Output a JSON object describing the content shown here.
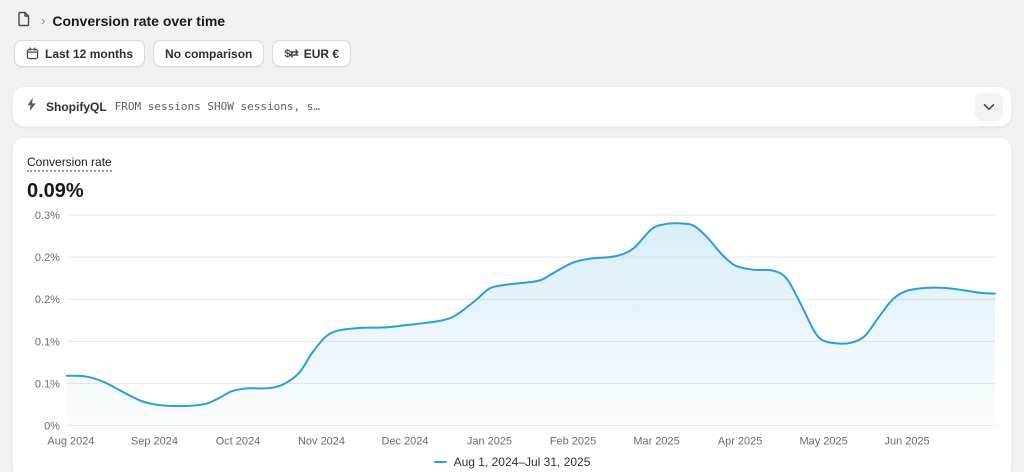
{
  "app": {
    "background": "#f1f1f1",
    "accent": "#2a9fd8"
  },
  "header": {
    "title": "Conversion rate over time",
    "breadcrumb_separator": "›"
  },
  "filters": {
    "date_range": {
      "label": "Last 12 months",
      "icon": "calendar-icon"
    },
    "comparison": {
      "label": "No comparison"
    },
    "currency": {
      "label": "EUR €",
      "icon": "currency-exchange-icon",
      "icon_glyph": "$⇄"
    }
  },
  "query_bar": {
    "brand": "ShopifyQL",
    "query": "FROM sessions SHOW sessions, s…",
    "icon": "lightning-icon",
    "expand_icon": "chevron-down-icon"
  },
  "metric": {
    "label": "Conversion rate",
    "value": "0.09%"
  },
  "chart_data": {
    "type": "area",
    "title": "Conversion rate",
    "current_value_pct": 0.09,
    "ylabel": "Conversion rate (%)",
    "ylim": [
      0,
      0.3
    ],
    "grid": true,
    "grid_color": "#e7e7e7",
    "legend_position": "bottom-center",
    "y_ticks": [
      {
        "v": 0.0,
        "label": "0%"
      },
      {
        "v": 0.06,
        "label": "0.1%"
      },
      {
        "v": 0.12,
        "label": "0.1%"
      },
      {
        "v": 0.18,
        "label": "0.2%"
      },
      {
        "v": 0.24,
        "label": "0.2%"
      },
      {
        "v": 0.3,
        "label": "0.3%"
      }
    ],
    "x_tick_labels": [
      "Aug 2024",
      "Sep 2024",
      "Oct 2024",
      "Nov 2024",
      "Dec 2024",
      "Jan 2025",
      "Feb 2025",
      "Mar 2025",
      "Apr 2025",
      "May 2025",
      "Jun 2025"
    ],
    "x_tick_positions": [
      0,
      0.09,
      0.18,
      0.27,
      0.36,
      0.451,
      0.541,
      0.631,
      0.721,
      0.811,
      0.901
    ],
    "series": [
      {
        "name": "Aug 1, 2024–Jul 31, 2025",
        "color": "#2a9fd8",
        "points_format": "[x_fraction_of_axis, conversion_rate_pct]",
        "points": [
          [
            0.0,
            0.071
          ],
          [
            0.02,
            0.07
          ],
          [
            0.04,
            0.062
          ],
          [
            0.06,
            0.048
          ],
          [
            0.08,
            0.035
          ],
          [
            0.095,
            0.03
          ],
          [
            0.11,
            0.028
          ],
          [
            0.13,
            0.028
          ],
          [
            0.15,
            0.031
          ],
          [
            0.165,
            0.04
          ],
          [
            0.178,
            0.049
          ],
          [
            0.195,
            0.053
          ],
          [
            0.215,
            0.053
          ],
          [
            0.232,
            0.058
          ],
          [
            0.25,
            0.075
          ],
          [
            0.265,
            0.105
          ],
          [
            0.28,
            0.128
          ],
          [
            0.295,
            0.136
          ],
          [
            0.315,
            0.139
          ],
          [
            0.345,
            0.14
          ],
          [
            0.365,
            0.143
          ],
          [
            0.385,
            0.146
          ],
          [
            0.405,
            0.15
          ],
          [
            0.42,
            0.158
          ],
          [
            0.44,
            0.178
          ],
          [
            0.455,
            0.195
          ],
          [
            0.47,
            0.2
          ],
          [
            0.49,
            0.203
          ],
          [
            0.51,
            0.207
          ],
          [
            0.525,
            0.218
          ],
          [
            0.545,
            0.232
          ],
          [
            0.565,
            0.238
          ],
          [
            0.59,
            0.241
          ],
          [
            0.61,
            0.252
          ],
          [
            0.63,
            0.28
          ],
          [
            0.645,
            0.287
          ],
          [
            0.66,
            0.288
          ],
          [
            0.675,
            0.285
          ],
          [
            0.69,
            0.268
          ],
          [
            0.705,
            0.245
          ],
          [
            0.72,
            0.228
          ],
          [
            0.74,
            0.222
          ],
          [
            0.76,
            0.221
          ],
          [
            0.775,
            0.21
          ],
          [
            0.79,
            0.175
          ],
          [
            0.805,
            0.135
          ],
          [
            0.815,
            0.121
          ],
          [
            0.83,
            0.117
          ],
          [
            0.845,
            0.118
          ],
          [
            0.86,
            0.128
          ],
          [
            0.875,
            0.155
          ],
          [
            0.89,
            0.18
          ],
          [
            0.905,
            0.192
          ],
          [
            0.925,
            0.196
          ],
          [
            0.945,
            0.196
          ],
          [
            0.965,
            0.193
          ],
          [
            0.985,
            0.189
          ],
          [
            1.0,
            0.188
          ]
        ]
      }
    ]
  }
}
